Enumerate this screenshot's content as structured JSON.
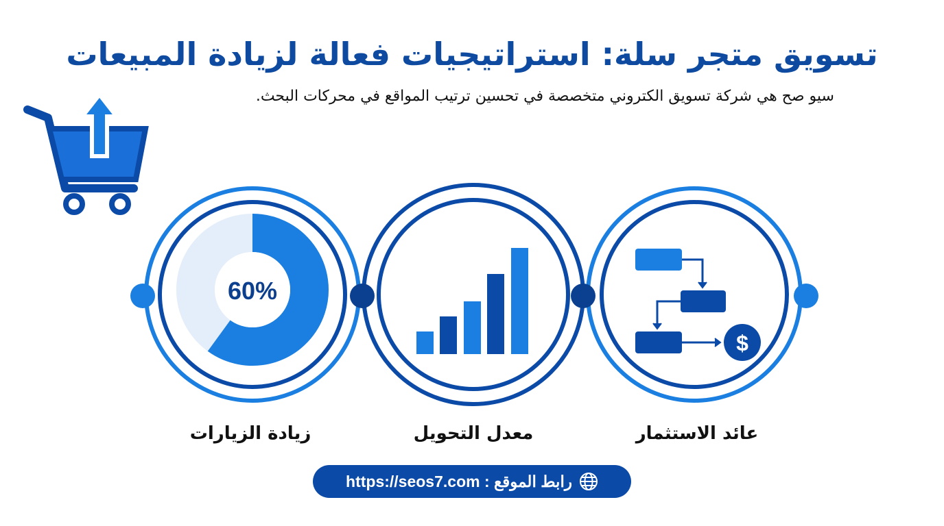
{
  "title": "تسويق متجر سلة: استراتيجيات فعالة لزيادة المبيعات",
  "subtitle": "سيو صح هي شركة تسويق الكتروني متخصصة في تحسين ترتيب المواقع في محركات البحث.",
  "colors": {
    "primary": "#0b4aa6",
    "accent": "#1a7fe0",
    "light": "#e3eefa"
  },
  "items": [
    {
      "label": "زيادة الزيارات",
      "icon": "donut-chart",
      "value_text": "60%",
      "percent": 60
    },
    {
      "label": "معدل التحويل",
      "icon": "bar-chart"
    },
    {
      "label": "عائد الاستثمار",
      "icon": "flowchart-dollar"
    }
  ],
  "cart_icon": "shopping-cart-upload-icon",
  "link": {
    "label": "رابط الموقع : https://seos7.com",
    "icon": "globe-icon"
  }
}
